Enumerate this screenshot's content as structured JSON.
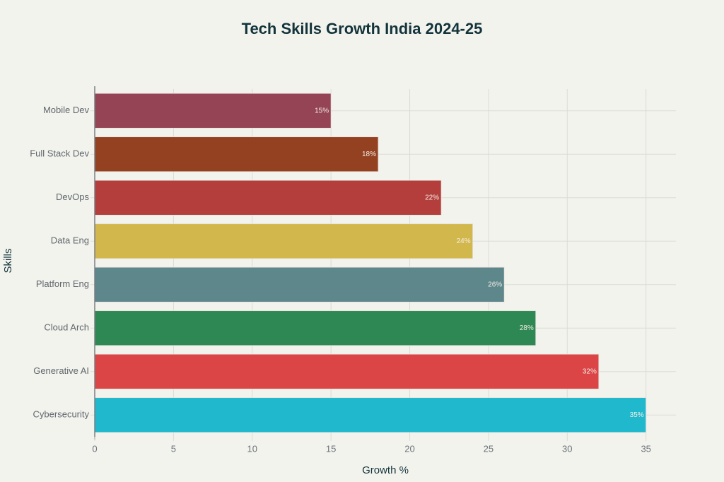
{
  "chart_data": {
    "type": "bar",
    "orientation": "horizontal",
    "title": "Tech Skills Growth India 2024-25",
    "xlabel": "Growth %",
    "ylabel": "Skills",
    "xlim": [
      0,
      36.9
    ],
    "xticks": [
      0,
      5,
      10,
      15,
      20,
      25,
      30,
      35
    ],
    "grid": true,
    "categories": [
      "Mobile Dev",
      "Full Stack Dev",
      "DevOps",
      "Data Eng",
      "Platform Eng",
      "Cloud Arch",
      "Generative AI",
      "Cybersecurity"
    ],
    "values": [
      15,
      18,
      22,
      24,
      26,
      28,
      32,
      35
    ],
    "data_labels": [
      "15%",
      "18%",
      "22%",
      "24%",
      "26%",
      "28%",
      "32%",
      "35%"
    ],
    "colors": [
      "#944454",
      "#944122",
      "#b43e3b",
      "#d2b84c",
      "#5d878b",
      "#2e8854",
      "#db4546",
      "#1fb8cd"
    ]
  }
}
